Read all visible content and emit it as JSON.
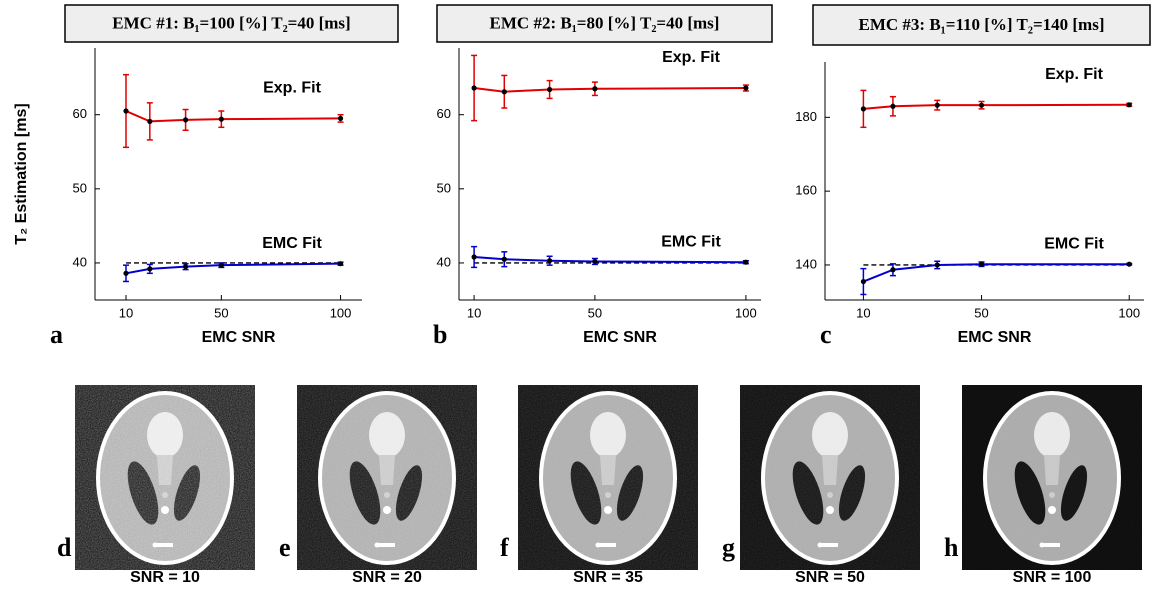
{
  "chart_data": [
    {
      "type": "line",
      "panel": "a",
      "title": "EMC #1:  B₁=100 [%]   T₂=40 [ms]",
      "x_label": "EMC  SNR",
      "y_label": "T₂  Estimation [ms]",
      "x": [
        10,
        20,
        35,
        50,
        100
      ],
      "xlim": [
        -3,
        109
      ],
      "xticks": [
        10,
        50,
        100
      ],
      "ylim": [
        35,
        69
      ],
      "yticks": [
        40,
        50,
        60
      ],
      "reference_line": 40,
      "series": [
        {
          "name": "Exp. Fit",
          "color": "#e00000",
          "values": [
            60.5,
            59.1,
            59.3,
            59.4,
            59.5
          ],
          "errors": [
            4.9,
            2.5,
            1.4,
            1.1,
            0.5
          ]
        },
        {
          "name": "EMC Fit",
          "color": "#0000d0",
          "values": [
            38.6,
            39.2,
            39.5,
            39.7,
            39.9
          ],
          "errors": [
            1.1,
            0.6,
            0.4,
            0.3,
            0.2
          ]
        }
      ]
    },
    {
      "type": "line",
      "panel": "b",
      "title": "EMC #2:  B₁=80 [%]   T₂=40 [ms]",
      "x_label": "EMC  SNR",
      "x": [
        10,
        20,
        35,
        50,
        100
      ],
      "xlim": [
        5,
        105
      ],
      "xticks": [
        10,
        50,
        100
      ],
      "ylim": [
        35,
        69
      ],
      "yticks": [
        40,
        50,
        60
      ],
      "reference_line": 40,
      "series": [
        {
          "name": "Exp. Fit",
          "color": "#e00000",
          "values": [
            63.6,
            63.1,
            63.4,
            63.5,
            63.6
          ],
          "errors": [
            4.4,
            2.2,
            1.2,
            0.9,
            0.4
          ]
        },
        {
          "name": "EMC Fit",
          "color": "#0000d0",
          "values": [
            40.8,
            40.5,
            40.3,
            40.2,
            40.1
          ],
          "errors": [
            1.4,
            1.0,
            0.6,
            0.4,
            0.2
          ]
        }
      ]
    },
    {
      "type": "line",
      "panel": "c",
      "title": "EMC #3:  B₁=110 [%]   T₂=140 [ms]",
      "x_label": "EMC  SNR",
      "x": [
        10,
        20,
        35,
        50,
        100
      ],
      "xlim": [
        -3,
        105
      ],
      "xticks": [
        10,
        50,
        100
      ],
      "ylim": [
        130.5,
        195
      ],
      "yticks": [
        140,
        160,
        180
      ],
      "reference_line": 140,
      "series": [
        {
          "name": "Exp. Fit",
          "color": "#e00000",
          "values": [
            182.3,
            183,
            183.3,
            183.3,
            183.4
          ],
          "errors": [
            5,
            2.6,
            1.3,
            1,
            0.4
          ]
        },
        {
          "name": "EMC Fit",
          "color": "#0000d0",
          "values": [
            135.5,
            138.7,
            140,
            140.2,
            140.2
          ],
          "errors": [
            3.5,
            1.6,
            1,
            0.6,
            0.2
          ]
        }
      ]
    }
  ],
  "images": [
    {
      "label": "d",
      "caption": "SNR = 10"
    },
    {
      "label": "e",
      "caption": "SNR = 20"
    },
    {
      "label": "f",
      "caption": "SNR = 35"
    },
    {
      "label": "g",
      "caption": "SNR = 50"
    },
    {
      "label": "h",
      "caption": "SNR = 100"
    }
  ]
}
